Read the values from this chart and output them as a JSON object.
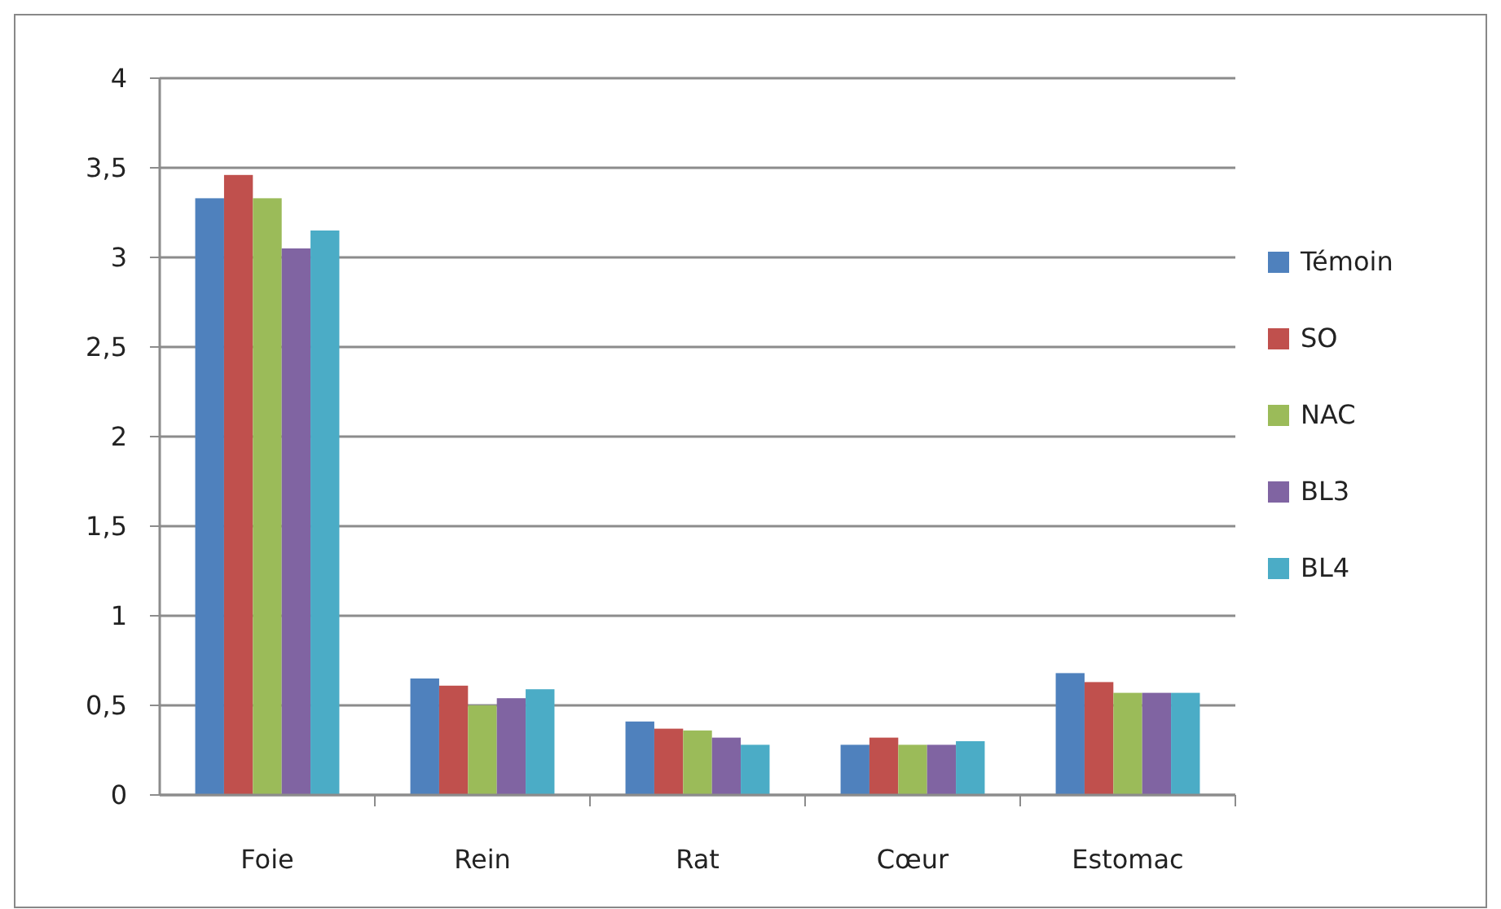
{
  "chart_data": {
    "type": "bar",
    "categories": [
      "Foie",
      "Rein",
      "Rat",
      "Cœur",
      "Estomac"
    ],
    "series": [
      {
        "name": "Témoin",
        "color": "#4f81bd",
        "values": [
          3.33,
          0.65,
          0.41,
          0.28,
          0.68
        ]
      },
      {
        "name": "SO",
        "color": "#c0504d",
        "values": [
          3.46,
          0.61,
          0.37,
          0.32,
          0.63
        ]
      },
      {
        "name": "NAC",
        "color": "#9bbb59",
        "values": [
          3.33,
          0.5,
          0.36,
          0.28,
          0.57
        ]
      },
      {
        "name": "BL3",
        "color": "#8064a2",
        "values": [
          3.05,
          0.54,
          0.32,
          0.28,
          0.57
        ]
      },
      {
        "name": "BL4",
        "color": "#4bacc6",
        "values": [
          3.15,
          0.59,
          0.28,
          0.3,
          0.57
        ]
      }
    ],
    "ylim": [
      0,
      4
    ],
    "yticks": [
      0,
      {
        "value": 0.5,
        "label": "0,5"
      },
      1,
      {
        "value": 1.5,
        "label": "1,5"
      },
      2,
      {
        "value": 2.5,
        "label": "2,5"
      },
      3,
      {
        "value": 3.5,
        "label": "3,5"
      },
      4
    ],
    "grid": "y",
    "legend": "right"
  }
}
